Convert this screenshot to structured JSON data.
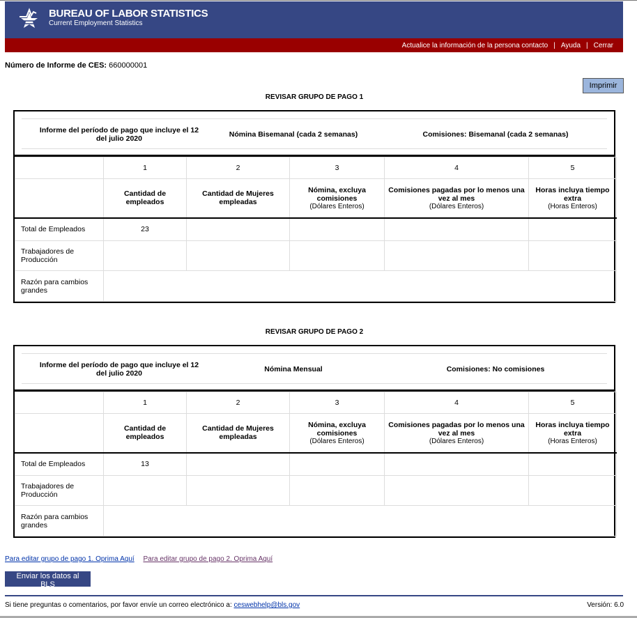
{
  "header": {
    "title": "BUREAU OF LABOR STATISTICS",
    "subtitle": "Current Employment Statistics",
    "nav": [
      "Actualice la información de la persona contacto",
      "Ayuda",
      "Cerrar"
    ],
    "separator": "|"
  },
  "report": {
    "label": "Número de Informe de CES:",
    "value": "660000001"
  },
  "print_label": "Imprimir",
  "col_numbers": [
    "1",
    "2",
    "3",
    "4",
    "5"
  ],
  "col_headers": [
    {
      "title": "Cantidad de empleados",
      "unit": ""
    },
    {
      "title": "Cantidad de Mujeres empleadas",
      "unit": ""
    },
    {
      "title": "Nómina, excluya comisiones",
      "unit": "(Dólares Enteros)"
    },
    {
      "title": "Comisiones pagadas por lo menos una vez al mes",
      "unit": "(Dólares Enteros)"
    },
    {
      "title": "Horas incluya tiempo extra",
      "unit": "(Horas Enteros)"
    }
  ],
  "row_labels": [
    "Total de Empleados",
    "Trabajadores de Producción",
    "Razón para cambios grandes"
  ],
  "groups": [
    {
      "title": "REVISAR GRUPO DE PAGO 1",
      "period": "Informe del período de pago que incluye el 12 del julio 2020",
      "payroll": "Nómina Bisemanal (cada 2 semanas)",
      "commissions": "Comisiones: Bisemanal (cada 2 semanas)",
      "rows": [
        [
          "23",
          "",
          "",
          "",
          ""
        ],
        [
          "",
          "",
          "",
          "",
          ""
        ]
      ],
      "reason": ""
    },
    {
      "title": "REVISAR GRUPO DE PAGO 2",
      "period": "Informe del período de pago que incluye el 12 del julio 2020",
      "payroll": "Nómina Mensual",
      "commissions": "Comisiones: No comisiones",
      "rows": [
        [
          "13",
          "",
          "",
          "",
          ""
        ],
        [
          "",
          "",
          "",
          "",
          ""
        ]
      ],
      "reason": ""
    }
  ],
  "links": [
    "Para editar grupo de pago 1. Oprima Aquí",
    "Para editar grupo de pago 2. Oprima Aquí"
  ],
  "submit_label": "Enviar los datos al BLS",
  "footer": {
    "text": "Si tiene preguntas o comentarios, por favor envíe un correo electrónico a:",
    "email": "ceswebhelp@bls.gov",
    "version": "Versión: 6.0"
  },
  "colors": {
    "brand_blue": "#364784",
    "red_bar": "#990000",
    "print_button": "#9bb5dc"
  }
}
